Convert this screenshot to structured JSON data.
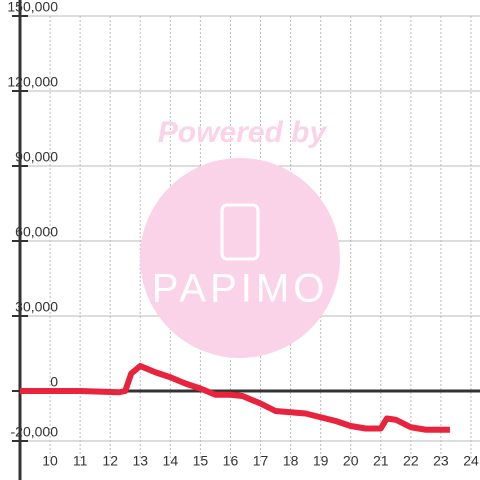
{
  "chart_data": {
    "type": "line",
    "x": [
      9,
      11,
      12.3,
      12.5,
      12.7,
      13,
      13.5,
      14,
      14.5,
      15,
      15.5,
      16,
      16.4,
      17,
      17.5,
      18,
      18.5,
      19,
      19.5,
      20,
      20.5,
      21,
      21.2,
      21.5,
      22,
      22.5,
      23.3
    ],
    "series": [
      {
        "color": "#e8233d",
        "values": [
          0,
          0,
          -500,
          0,
          7000,
          10000,
          7500,
          5500,
          3000,
          1000,
          -1500,
          -1500,
          -2000,
          -5000,
          -8000,
          -8500,
          -9000,
          -10500,
          -12000,
          -14000,
          -15000,
          -15000,
          -11000,
          -11500,
          -14500,
          -15500,
          -15500
        ]
      }
    ],
    "xlim": [
      9,
      24.3
    ],
    "xticks": [
      10,
      11,
      12,
      13,
      14,
      15,
      16,
      17,
      18,
      19,
      20,
      21,
      22,
      23,
      24
    ],
    "ylim": [
      -20000,
      150000
    ],
    "yticks": [
      {
        "value": -20000,
        "label": "-20,000"
      },
      0,
      {
        "value": 30000,
        "label": "30,000"
      },
      {
        "value": 60000,
        "label": "60,000"
      },
      {
        "value": 90000,
        "label": "90,000"
      },
      {
        "value": 120000,
        "label": "120,000"
      },
      {
        "value": 150000,
        "label": "150,000"
      }
    ],
    "grid": true,
    "watermark": {
      "text": "Powered by",
      "logo": "PAPIMO"
    }
  }
}
